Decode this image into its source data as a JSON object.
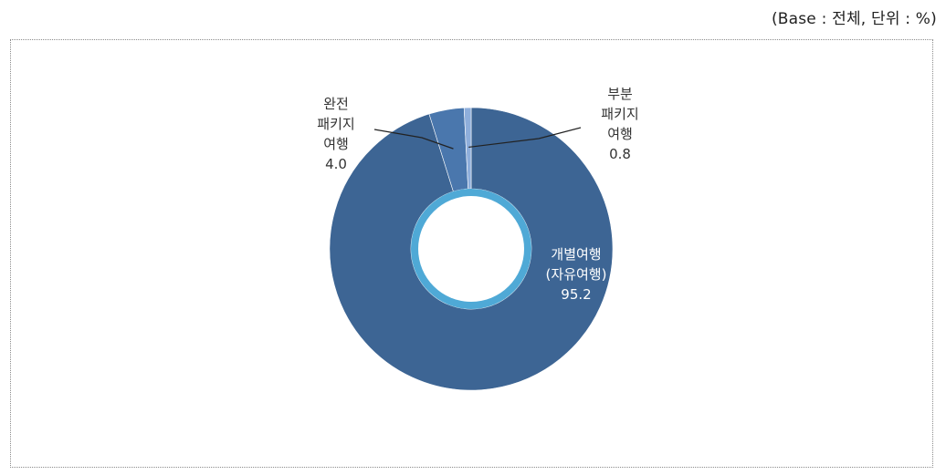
{
  "note": "(Base : 전체, 단위 : %)",
  "chart_data": {
    "type": "pie",
    "donut": true,
    "slices": [
      {
        "lines": [
          "개별여행",
          "(자유여행)"
        ],
        "value": 95.2,
        "value_label": "95.2",
        "color": "#3d6594"
      },
      {
        "lines": [
          "완전",
          "패키지",
          "여행"
        ],
        "value": 4.0,
        "value_label": "4.0",
        "color": "#4a77ad"
      },
      {
        "lines": [
          "부분",
          "패키지",
          "여행"
        ],
        "value": 0.8,
        "value_label": "0.8",
        "color": "#8eaedb"
      }
    ],
    "inner_ring_color": "#4fa9d6"
  }
}
